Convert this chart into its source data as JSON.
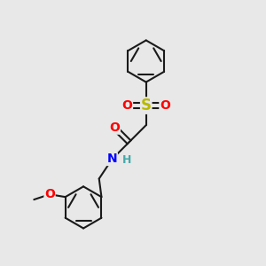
{
  "background_color": "#e8e8e8",
  "bond_color": "#1a1a1a",
  "bond_width": 1.5,
  "atom_colors": {
    "O": "#ff0000",
    "N": "#0000ff",
    "S": "#b8b800",
    "H": "#44aaaa",
    "C": "#1a1a1a"
  },
  "font_size_atom": 10,
  "figsize": [
    3.0,
    3.0
  ],
  "dpi": 100
}
